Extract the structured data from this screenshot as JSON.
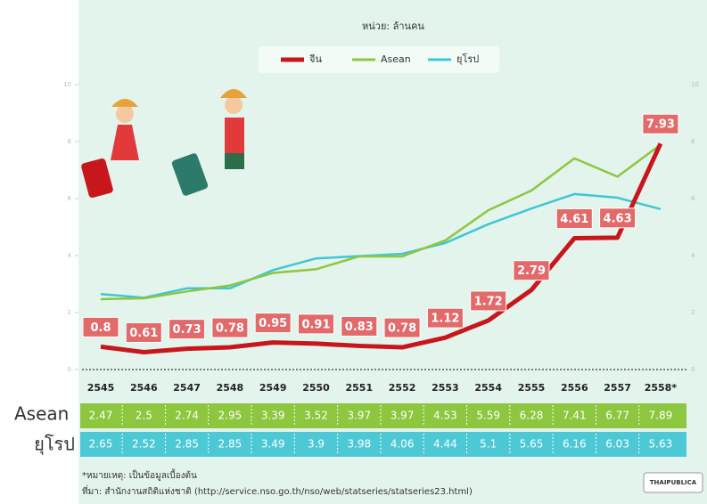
{
  "chart_data": {
    "type": "line",
    "unit": "หน่วย: ล้านคน",
    "categories": [
      "2545",
      "2546",
      "2547",
      "2548",
      "2549",
      "2550",
      "2551",
      "2552",
      "2553",
      "2554",
      "2555",
      "2556",
      "2557",
      "2558*"
    ],
    "series": [
      {
        "name": "จีน",
        "color": "#c8161d",
        "values": [
          0.8,
          0.61,
          0.73,
          0.78,
          0.95,
          0.91,
          0.83,
          0.78,
          1.12,
          1.72,
          2.79,
          4.61,
          4.63,
          7.93
        ]
      },
      {
        "name": "Asean",
        "color": "#8dc63f",
        "values": [
          2.47,
          2.5,
          2.74,
          2.95,
          3.39,
          3.52,
          3.97,
          3.97,
          4.53,
          5.59,
          6.28,
          7.41,
          6.77,
          7.89
        ]
      },
      {
        "name": "ยุโรป",
        "color": "#3fc6d4",
        "values": [
          2.65,
          2.52,
          2.85,
          2.85,
          3.49,
          3.9,
          3.98,
          4.06,
          4.44,
          5.1,
          5.65,
          6.16,
          6.03,
          5.63
        ]
      }
    ],
    "ylim": [
      0,
      10
    ],
    "yticks": [
      0,
      2,
      4,
      6,
      8,
      10
    ],
    "note": "*หมายเหตุ: เป็นข้อมูลเบื้องต้น",
    "source": "ที่มา: สำนักงานสถิติแห่งชาติ (http://service.nso.go.th/nso/web/statseries/statseries23.html)",
    "logo": "THAIPUBLICA"
  }
}
